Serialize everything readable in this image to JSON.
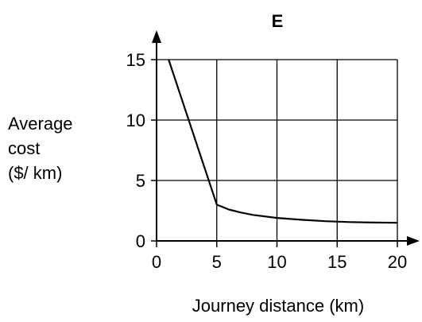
{
  "chart_data": {
    "type": "line",
    "title": "E",
    "xlabel": "Journey distance (km)",
    "ylabel_lines": [
      "Average",
      "cost",
      "($/ km)"
    ],
    "xlim": [
      0,
      20
    ],
    "ylim": [
      0,
      15
    ],
    "x_ticks": [
      "0",
      "5",
      "10",
      "15",
      "20"
    ],
    "y_ticks": [
      "0",
      "5",
      "10",
      "15"
    ],
    "grid": true,
    "series": [
      {
        "x": [
          1,
          5,
          6,
          7,
          8,
          10,
          12,
          14,
          16,
          18,
          20
        ],
        "values": [
          15,
          3,
          2.6,
          2.35,
          2.15,
          1.9,
          1.75,
          1.63,
          1.56,
          1.52,
          1.5
        ]
      }
    ]
  }
}
